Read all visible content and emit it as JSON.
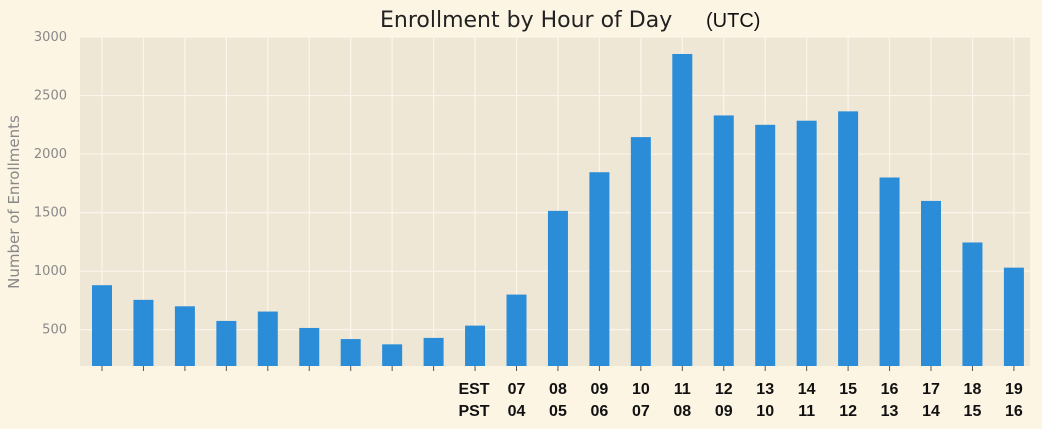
{
  "chart_data": {
    "type": "bar",
    "title": "Enrollment by Hour of Day",
    "subtitle": "(UTC)",
    "ylabel": "Number of Enrollments",
    "xlabel": "",
    "ylim": [
      190,
      3000
    ],
    "yticks": [
      500,
      1000,
      1500,
      2000,
      2500,
      3000
    ],
    "grid": true,
    "colors": {
      "bar": "#2b8cd8",
      "plot_background": "#efe7d5",
      "page_background": "#fdf5e4",
      "grid": "#fbf6ec"
    },
    "values": [
      880,
      755,
      700,
      575,
      655,
      515,
      420,
      375,
      430,
      535,
      800,
      1515,
      1845,
      2145,
      2855,
      2330,
      2250,
      2285,
      2365,
      1800,
      1600,
      1245,
      1030
    ],
    "row_labels": {
      "est": "EST",
      "pst": "PST"
    },
    "est_labels": [
      "",
      "",
      "",
      "",
      "",
      "",
      "",
      "",
      "",
      "",
      "07",
      "08",
      "09",
      "10",
      "11",
      "12",
      "13",
      "14",
      "15",
      "16",
      "17",
      "18",
      "19"
    ],
    "pst_labels": [
      "",
      "",
      "",
      "",
      "",
      "",
      "",
      "",
      "",
      "",
      "04",
      "05",
      "06",
      "07",
      "08",
      "09",
      "10",
      "11",
      "12",
      "13",
      "14",
      "15",
      "16"
    ]
  }
}
